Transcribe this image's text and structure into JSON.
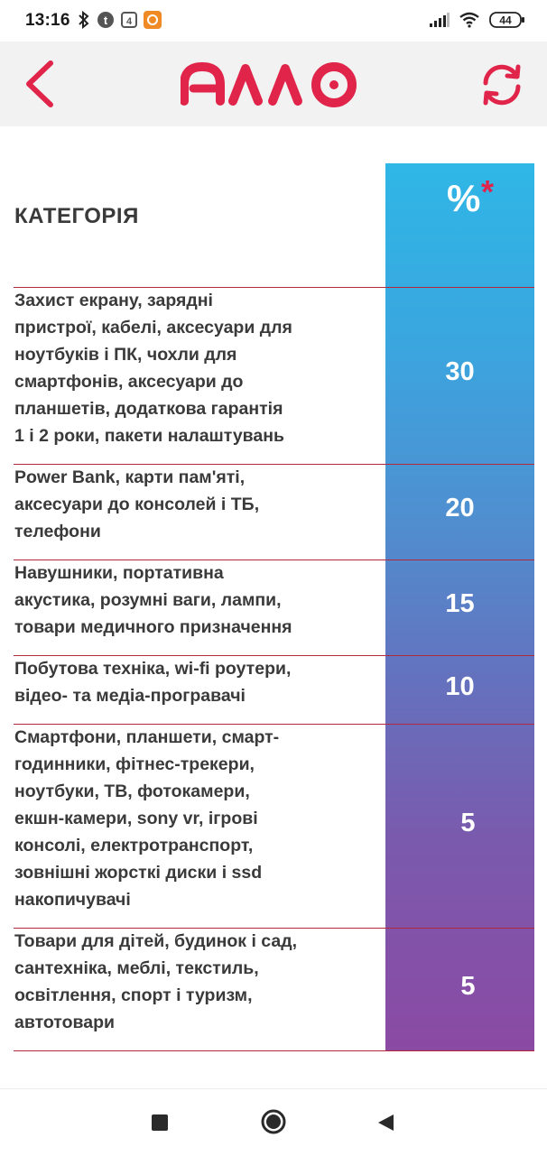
{
  "status_bar": {
    "time": "13:16",
    "battery": "44",
    "icons": [
      "bluetooth-icon",
      "app-t-icon",
      "app-4-icon",
      "app-orange-icon",
      "signal-icon",
      "wifi-icon",
      "battery-icon"
    ]
  },
  "app_bar": {
    "logo": "алло",
    "back_icon": "chevron-left-icon",
    "refresh_icon": "refresh-icon",
    "accent_color": "#e0244a"
  },
  "table": {
    "header": {
      "category": "КАТЕГОРІЯ",
      "percent": "%",
      "asterisk": "*"
    },
    "rows": [
      {
        "lines": [
          "Захист екрану, зарядні",
          "пристрої, кабелі, аксесуари для",
          "ноутбуків і ПК, чохли для",
          "смартфонів, аксесуари до",
          "планшетів, додаткова гарантія",
          "1 і 2 роки, пакети налаштувань"
        ],
        "value": "30"
      },
      {
        "lines": [
          "Power Bank, карти пам'яті,",
          "аксесуари до консолей і ТБ,",
          "телефони"
        ],
        "value": "20"
      },
      {
        "lines": [
          "Навушники, портативна",
          "акустика, розумні ваги, лампи,",
          "товари медичного призначення"
        ],
        "value": "15"
      },
      {
        "lines": [
          "Побутова техніка, wi-fi роутери,",
          "відео- та медіа-програвачі"
        ],
        "value": "10"
      },
      {
        "lines": [
          "Смартфони, планшети, смарт-",
          "годинники, фітнес-трекери,",
          "ноутбуки, ТВ, фотокамери,",
          "екшн-камери, sony vr, ігрові",
          "консолі, електротранспорт,",
          "зовнішні жорсткі диски і ssd",
          "накопичувачі"
        ],
        "value": "5"
      },
      {
        "lines": [
          "Товари для дітей, будинок і сад,",
          "сантехніка, меблі, текстиль,",
          "освітлення, спорт і туризм,",
          "автотовари"
        ],
        "value": "5"
      }
    ]
  },
  "nav_bar": {
    "icons": [
      "recents-square-icon",
      "home-circle-icon",
      "back-triangle-icon"
    ]
  }
}
